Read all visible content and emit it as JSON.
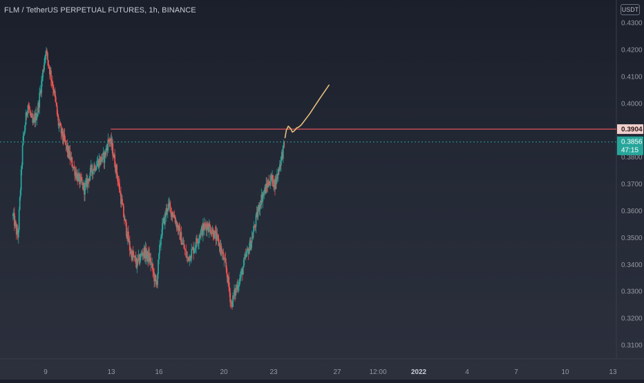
{
  "header": {
    "symbol_title": "FLM / TetherUS PERPETUAL FUTURES, 1h, BINANCE",
    "currency": "USDT"
  },
  "colors": {
    "up": "#26a69a",
    "down": "#ef5350",
    "resistance_line": "#e0535a",
    "last_price_bg": "#26a69a",
    "level_label_bg": "#f2d0cd",
    "projection": "#e8c07a",
    "axis_text": "#9598a1"
  },
  "chart_data": {
    "type": "candlestick",
    "title": "FLM / TetherUS PERPETUAL FUTURES, 1h, BINANCE",
    "ylim": [
      0.306,
      0.433
    ],
    "y_ticks": [
      "0.4300",
      "0.4200",
      "0.4100",
      "0.4000",
      "0.3800",
      "0.3700",
      "0.3600",
      "0.3500",
      "0.3400",
      "0.3300",
      "0.3200",
      "0.3100"
    ],
    "x_ticks": [
      "9",
      "13",
      "16",
      "20",
      "23",
      "27",
      "12:00",
      "2022",
      "4",
      "7",
      "10",
      "13"
    ],
    "x_range_days": [
      7.0,
      44.5
    ],
    "price_path": [
      {
        "t": 7.0,
        "p": 0.358
      },
      {
        "t": 7.3,
        "p": 0.35
      },
      {
        "t": 7.6,
        "p": 0.385
      },
      {
        "t": 7.9,
        "p": 0.4
      },
      {
        "t": 8.2,
        "p": 0.392
      },
      {
        "t": 8.5,
        "p": 0.397
      },
      {
        "t": 8.8,
        "p": 0.41
      },
      {
        "t": 9.0,
        "p": 0.42
      },
      {
        "t": 9.2,
        "p": 0.414
      },
      {
        "t": 9.5,
        "p": 0.405
      },
      {
        "t": 9.8,
        "p": 0.392
      },
      {
        "t": 10.2,
        "p": 0.385
      },
      {
        "t": 10.6,
        "p": 0.378
      },
      {
        "t": 11.0,
        "p": 0.372
      },
      {
        "t": 11.4,
        "p": 0.368
      },
      {
        "t": 11.8,
        "p": 0.375
      },
      {
        "t": 12.2,
        "p": 0.378
      },
      {
        "t": 12.6,
        "p": 0.38
      },
      {
        "t": 12.9,
        "p": 0.387
      },
      {
        "t": 13.1,
        "p": 0.383
      },
      {
        "t": 13.4,
        "p": 0.373
      },
      {
        "t": 13.8,
        "p": 0.358
      },
      {
        "t": 14.2,
        "p": 0.345
      },
      {
        "t": 14.6,
        "p": 0.34
      },
      {
        "t": 15.0,
        "p": 0.345
      },
      {
        "t": 15.4,
        "p": 0.342
      },
      {
        "t": 15.8,
        "p": 0.332
      },
      {
        "t": 16.1,
        "p": 0.352
      },
      {
        "t": 16.5,
        "p": 0.362
      },
      {
        "t": 16.9,
        "p": 0.358
      },
      {
        "t": 17.3,
        "p": 0.35
      },
      {
        "t": 17.7,
        "p": 0.342
      },
      {
        "t": 18.1,
        "p": 0.346
      },
      {
        "t": 18.5,
        "p": 0.352
      },
      {
        "t": 18.9,
        "p": 0.355
      },
      {
        "t": 19.3,
        "p": 0.352
      },
      {
        "t": 19.7,
        "p": 0.347
      },
      {
        "t": 20.1,
        "p": 0.338
      },
      {
        "t": 20.4,
        "p": 0.325
      },
      {
        "t": 20.7,
        "p": 0.331
      },
      {
        "t": 21.0,
        "p": 0.336
      },
      {
        "t": 21.3,
        "p": 0.343
      },
      {
        "t": 21.6,
        "p": 0.348
      },
      {
        "t": 21.9,
        "p": 0.356
      },
      {
        "t": 22.2,
        "p": 0.364
      },
      {
        "t": 22.5,
        "p": 0.368
      },
      {
        "t": 22.8,
        "p": 0.372
      },
      {
        "t": 23.1,
        "p": 0.37
      },
      {
        "t": 23.4,
        "p": 0.378
      },
      {
        "t": 23.7,
        "p": 0.3856
      }
    ],
    "resistance_level": 0.3904,
    "resistance_label": "0.3904",
    "last_price": 0.3856,
    "last_price_label": "0.3856",
    "countdown_label": "47:15",
    "projection_path": [
      {
        "t": 23.7,
        "p": 0.3872
      },
      {
        "t": 23.78,
        "p": 0.39
      },
      {
        "t": 23.9,
        "p": 0.3915
      },
      {
        "t": 24.05,
        "p": 0.3905
      },
      {
        "t": 24.15,
        "p": 0.3893
      },
      {
        "t": 24.28,
        "p": 0.3898
      },
      {
        "t": 24.4,
        "p": 0.3908
      },
      {
        "t": 24.55,
        "p": 0.3912
      },
      {
        "t": 24.7,
        "p": 0.392
      },
      {
        "t": 25.2,
        "p": 0.396
      },
      {
        "t": 25.8,
        "p": 0.4015
      },
      {
        "t": 26.4,
        "p": 0.4068
      }
    ]
  }
}
